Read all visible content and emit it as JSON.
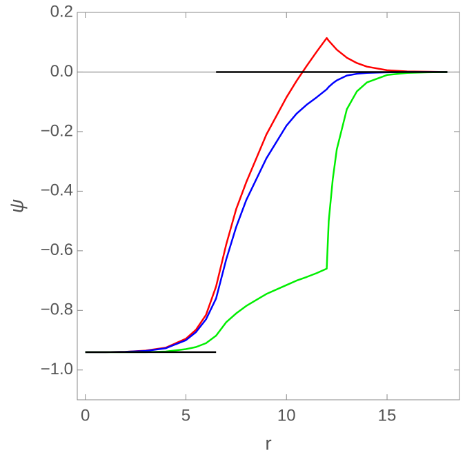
{
  "chart_data": {
    "type": "line",
    "x_label": "r",
    "y_label": "ψ",
    "x": [
      0,
      1,
      2,
      3,
      4,
      5,
      5.5,
      6,
      6.5,
      7,
      7.5,
      8,
      9,
      10,
      10.5,
      11,
      11.5,
      12,
      12.1,
      12.3,
      12.5,
      13,
      13.5,
      14,
      15,
      16,
      17,
      18
    ],
    "series": [
      {
        "color": "#ff0000",
        "values": [
          -0.94,
          -0.94,
          -0.939,
          -0.935,
          -0.925,
          -0.895,
          -0.865,
          -0.815,
          -0.72,
          -0.58,
          -0.46,
          -0.37,
          -0.21,
          -0.085,
          -0.03,
          0.02,
          0.068,
          0.114,
          0.105,
          0.09,
          0.075,
          0.048,
          0.03,
          0.018,
          0.006,
          0.002,
          0.001,
          0
        ]
      },
      {
        "color": "#0000ff",
        "values": [
          -0.94,
          -0.94,
          -0.939,
          -0.936,
          -0.927,
          -0.9,
          -0.873,
          -0.83,
          -0.76,
          -0.63,
          -0.52,
          -0.43,
          -0.29,
          -0.18,
          -0.14,
          -0.11,
          -0.085,
          -0.058,
          -0.05,
          -0.038,
          -0.028,
          -0.012,
          -0.006,
          -0.003,
          -0.001,
          0,
          0,
          0
        ]
      },
      {
        "color": "#00ee00",
        "values": [
          -0.94,
          -0.94,
          -0.94,
          -0.94,
          -0.938,
          -0.93,
          -0.923,
          -0.91,
          -0.885,
          -0.84,
          -0.81,
          -0.785,
          -0.745,
          -0.715,
          -0.7,
          -0.688,
          -0.675,
          -0.66,
          -0.5,
          -0.36,
          -0.26,
          -0.125,
          -0.065,
          -0.035,
          -0.01,
          -0.003,
          -0.001,
          0
        ]
      },
      {
        "color": "#000000",
        "x": [
          0,
          6.5
        ],
        "values": [
          -0.94,
          -0.94
        ]
      },
      {
        "color": "#000000",
        "x": [
          6.5,
          18
        ],
        "values": [
          0,
          0
        ]
      }
    ],
    "xlim": [
      -0.4,
      18.6
    ],
    "ylim": [
      -1.1,
      0.2
    ],
    "xticks": [
      0,
      5,
      10,
      15
    ],
    "yticks": [
      {
        "value": 0.2,
        "label": "0.2"
      },
      {
        "value": 0,
        "label": "0.0"
      },
      {
        "value": -0.2,
        "label": "−0.2"
      },
      {
        "value": -0.4,
        "label": "−0.4"
      },
      {
        "value": -0.6,
        "label": "−0.6"
      },
      {
        "value": -0.8,
        "label": "−0.8"
      },
      {
        "value": -1,
        "label": "−1.0"
      }
    ]
  }
}
